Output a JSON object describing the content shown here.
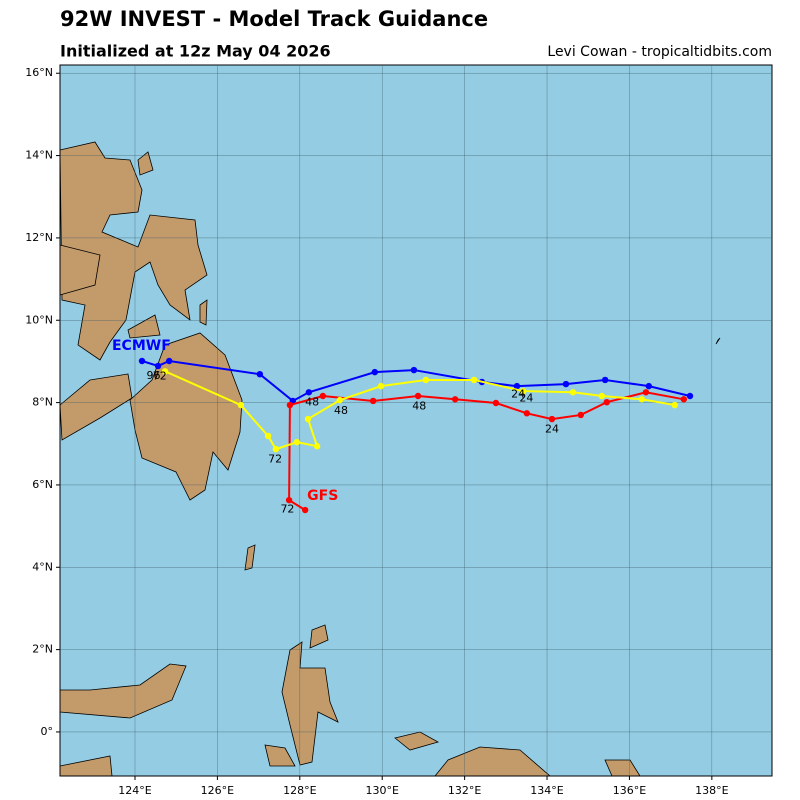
{
  "chart_data": {
    "type": "track-map",
    "title": "92W INVEST - Model Track Guidance",
    "subtitle": "Initialized at 12z May 04 2026",
    "credit": "Levi Cowan - tropicaltidbits.com",
    "xlim": [
      122.18,
      139.46
    ],
    "ylim": [
      -1.07,
      16.2
    ],
    "xticks": [
      {
        "value": 124,
        "label": "124°E"
      },
      {
        "value": 126,
        "label": "126°E"
      },
      {
        "value": 128,
        "label": "128°E"
      },
      {
        "value": 130,
        "label": "130°E"
      },
      {
        "value": 132,
        "label": "132°E"
      },
      {
        "value": 134,
        "label": "134°E"
      },
      {
        "value": 136,
        "label": "136°E"
      },
      {
        "value": 138,
        "label": "138°E"
      }
    ],
    "yticks": [
      {
        "value": 0,
        "label": "0°"
      },
      {
        "value": 2,
        "label": "2°N"
      },
      {
        "value": 4,
        "label": "4°N"
      },
      {
        "value": 6,
        "label": "6°N"
      },
      {
        "value": 8,
        "label": "8°N"
      },
      {
        "value": 10,
        "label": "10°N"
      },
      {
        "value": 12,
        "label": "12°N"
      },
      {
        "value": 14,
        "label": "14°N"
      },
      {
        "value": 16,
        "label": "16°N"
      }
    ],
    "grid": true,
    "series": [
      {
        "name": "ECMWF",
        "color": "#0000ff",
        "x": [
          137.47,
          136.47,
          135.41,
          134.46,
          133.27,
          132.42,
          130.77,
          129.82,
          128.22,
          127.83,
          127.03,
          124.83,
          124.56,
          124.17
        ],
        "values": [
          8.16,
          8.4,
          8.55,
          8.45,
          8.4,
          8.5,
          8.79,
          8.74,
          8.25,
          8.04,
          8.69,
          9.01,
          8.89,
          9.01
        ]
      },
      {
        "name": "GFS",
        "color": "#ff0000",
        "x": [
          137.32,
          136.4,
          135.45,
          134.82,
          134.12,
          133.51,
          132.76,
          131.77,
          130.87,
          129.78,
          128.56,
          127.76,
          127.74,
          128.13
        ],
        "values": [
          8.08,
          8.25,
          8.01,
          7.7,
          7.6,
          7.74,
          7.99,
          8.08,
          8.16,
          8.04,
          8.16,
          7.94,
          5.63,
          5.39
        ]
      },
      {
        "color": "#ffff00",
        "x": [
          137.1,
          136.3,
          135.33,
          134.63,
          133.42,
          132.23,
          131.06,
          129.97,
          128.97,
          128.2,
          128.42,
          127.93,
          127.42,
          127.23,
          126.57,
          124.73
        ],
        "values": [
          7.94,
          8.08,
          8.16,
          8.25,
          8.28,
          8.55,
          8.55,
          8.4,
          8.06,
          7.6,
          6.94,
          7.04,
          6.87,
          7.19,
          7.94,
          8.76
        ]
      }
    ],
    "annotations": [
      {
        "text": "24",
        "x": 133.3,
        "y": 8.2
      },
      {
        "text": "24",
        "x": 133.5,
        "y": 8.1
      },
      {
        "text": "24",
        "x": 134.12,
        "y": 7.35
      },
      {
        "text": "48",
        "x": 128.3,
        "y": 8.0
      },
      {
        "text": "48",
        "x": 129.0,
        "y": 7.8
      },
      {
        "text": "48",
        "x": 130.9,
        "y": 7.9
      },
      {
        "text": "72",
        "x": 127.4,
        "y": 6.62
      },
      {
        "text": "72",
        "x": 127.7,
        "y": 5.4
      },
      {
        "text": "96",
        "x": 124.45,
        "y": 8.65
      },
      {
        "text": "72",
        "x": 124.6,
        "y": 8.63
      }
    ]
  }
}
